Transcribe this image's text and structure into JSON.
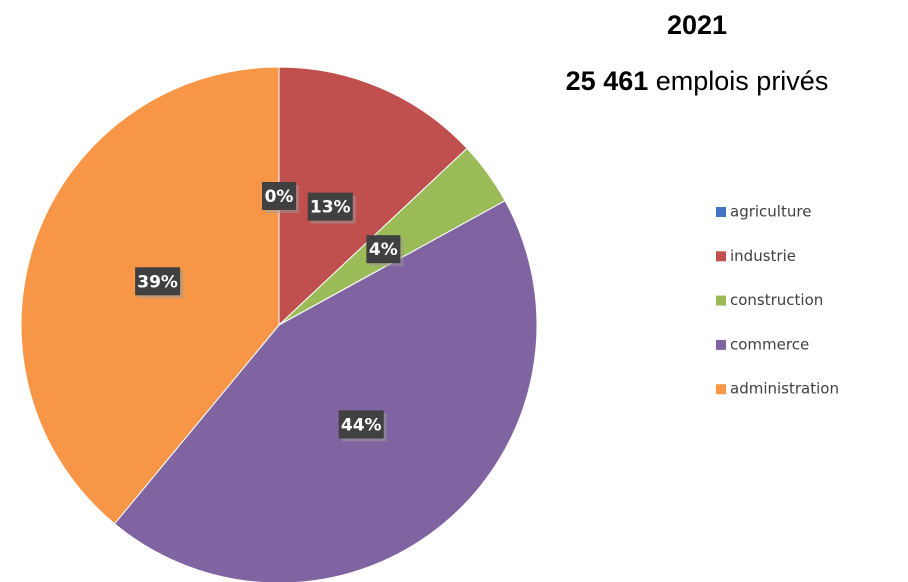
{
  "chart_data": {
    "type": "pie",
    "title": "2021",
    "subtitle": {
      "number": "25 461",
      "text": "emplois privés"
    },
    "categories": [
      "agriculture",
      "industrie",
      "construction",
      "commerce",
      "administration"
    ],
    "values": [
      0,
      13,
      4,
      44,
      39
    ],
    "value_labels": [
      "0%",
      "13%",
      "4%",
      "44%",
      "39%"
    ],
    "colors": [
      "#4472c4",
      "#c0504d",
      "#9bbb59",
      "#8064a2",
      "#f79646"
    ],
    "legend": "right"
  }
}
